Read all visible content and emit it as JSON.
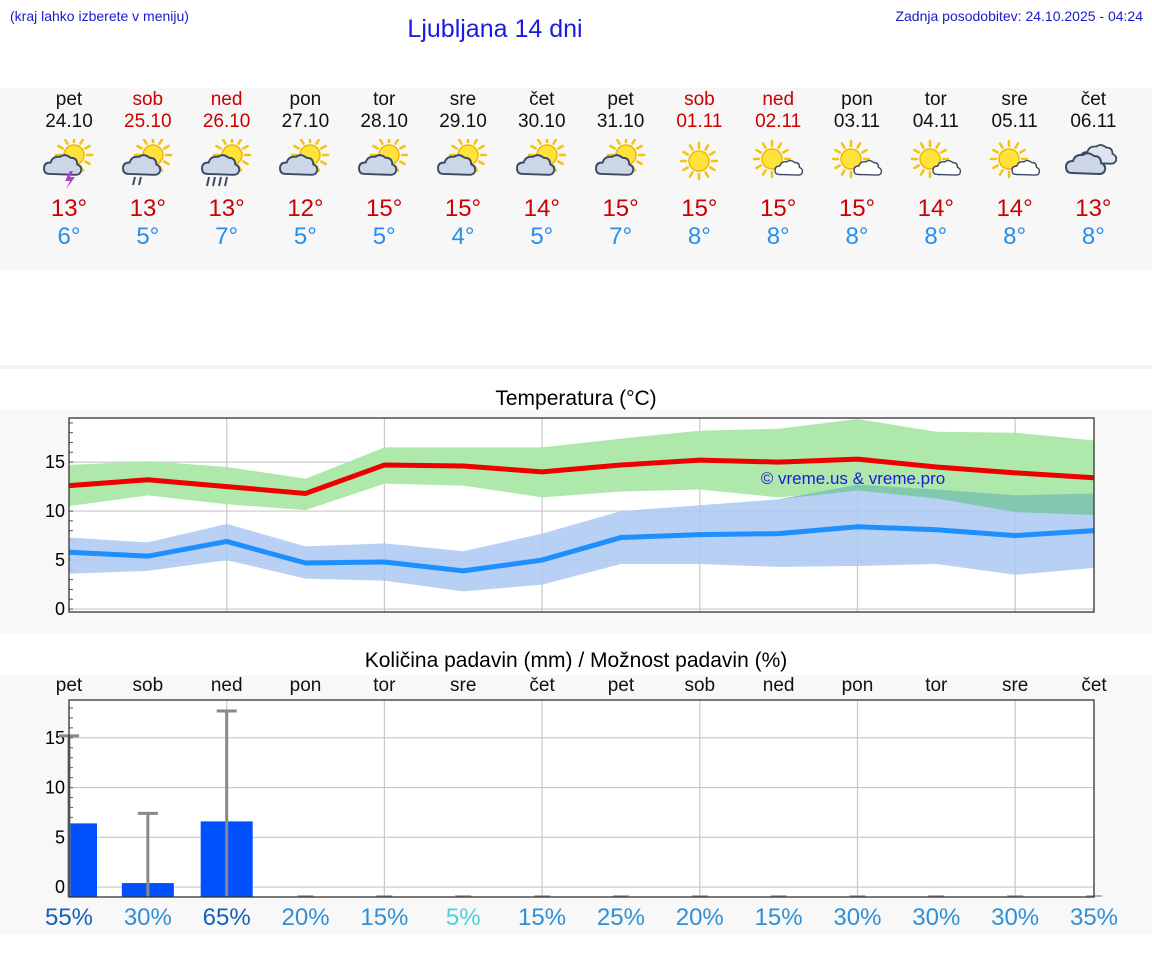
{
  "header": {
    "hint": "(kraj lahko izberete v meniju)",
    "title": "Ljubljana 14 dni",
    "updated": "Zadnja posodobitev: 24.10.2025 - 04:24"
  },
  "days": [
    {
      "name": "pet",
      "date": "24.10",
      "weekend": false,
      "icon": "sun-cloud-thunder-icon",
      "tmax": "13°",
      "tmin": "6°"
    },
    {
      "name": "sob",
      "date": "25.10",
      "weekend": true,
      "icon": "sun-cloud-light-rain-icon",
      "tmax": "13°",
      "tmin": "5°"
    },
    {
      "name": "ned",
      "date": "26.10",
      "weekend": true,
      "icon": "sun-cloud-rain-icon",
      "tmax": "13°",
      "tmin": "7°"
    },
    {
      "name": "pon",
      "date": "27.10",
      "weekend": false,
      "icon": "sun-cloud-icon",
      "tmax": "12°",
      "tmin": "5°"
    },
    {
      "name": "tor",
      "date": "28.10",
      "weekend": false,
      "icon": "sun-cloud-icon",
      "tmax": "15°",
      "tmin": "5°"
    },
    {
      "name": "sre",
      "date": "29.10",
      "weekend": false,
      "icon": "sun-cloud-icon",
      "tmax": "15°",
      "tmin": "4°"
    },
    {
      "name": "čet",
      "date": "30.10",
      "weekend": false,
      "icon": "sun-cloud-icon",
      "tmax": "14°",
      "tmin": "5°"
    },
    {
      "name": "pet",
      "date": "31.10",
      "weekend": false,
      "icon": "sun-cloud-icon",
      "tmax": "15°",
      "tmin": "7°"
    },
    {
      "name": "sob",
      "date": "01.11",
      "weekend": true,
      "icon": "sun-icon",
      "tmax": "15°",
      "tmin": "8°"
    },
    {
      "name": "ned",
      "date": "02.11",
      "weekend": true,
      "icon": "sun-small-cloud-icon",
      "tmax": "15°",
      "tmin": "8°"
    },
    {
      "name": "pon",
      "date": "03.11",
      "weekend": false,
      "icon": "sun-small-cloud-icon",
      "tmax": "15°",
      "tmin": "8°"
    },
    {
      "name": "tor",
      "date": "04.11",
      "weekend": false,
      "icon": "sun-small-cloud-icon",
      "tmax": "14°",
      "tmin": "8°"
    },
    {
      "name": "sre",
      "date": "05.11",
      "weekend": false,
      "icon": "sun-small-cloud-icon",
      "tmax": "14°",
      "tmin": "8°"
    },
    {
      "name": "čet",
      "date": "06.11",
      "weekend": false,
      "icon": "cloudy-icon",
      "tmax": "13°",
      "tmin": "8°"
    }
  ],
  "colors": {
    "max_line": "#ee0000",
    "max_band": "#aee8aa",
    "min_line": "#1e8fff",
    "min_band": "#aac8f2",
    "overlap_band": "#7cc8a8",
    "bar": "#0050ff",
    "whisker": "#888888",
    "weekend_text": "#cc0000",
    "pct_colors": [
      "#1560b8",
      "#2e90d8",
      "#42b8e0",
      "#50d0d8"
    ]
  },
  "chart_data": [
    {
      "type": "line",
      "title": "Temperatura (°C)",
      "categories": [
        "pet",
        "sob",
        "ned",
        "pon",
        "tor",
        "sre",
        "čet",
        "pet",
        "sob",
        "ned",
        "pon",
        "tor",
        "sre",
        "čet"
      ],
      "ylim": [
        -0.3,
        19.5
      ],
      "yticks": [
        0,
        5,
        10,
        15
      ],
      "grid": true,
      "watermark": "© vreme.us & vreme.pro",
      "series": [
        {
          "role": "max",
          "values": [
            12.6,
            13.2,
            12.5,
            11.8,
            14.7,
            14.6,
            14.0,
            14.7,
            15.2,
            15.0,
            15.3,
            14.5,
            13.9,
            13.4
          ],
          "band_low": [
            10.5,
            11.6,
            10.7,
            10.1,
            12.8,
            12.6,
            11.4,
            12.0,
            12.2,
            11.4,
            12.1,
            11.3,
            9.9,
            9.6
          ],
          "band_high": [
            14.7,
            15.1,
            14.5,
            13.3,
            16.5,
            16.5,
            16.5,
            17.4,
            18.2,
            18.4,
            19.4,
            18.1,
            18.0,
            17.2
          ]
        },
        {
          "role": "min",
          "values": [
            5.8,
            5.4,
            6.9,
            4.7,
            4.8,
            3.9,
            5.0,
            7.3,
            7.6,
            7.7,
            8.4,
            8.1,
            7.5,
            8.0
          ],
          "band_low": [
            3.6,
            3.9,
            5.0,
            3.1,
            2.9,
            1.8,
            2.5,
            4.6,
            4.6,
            4.3,
            4.4,
            4.6,
            3.5,
            4.2
          ],
          "band_high": [
            7.3,
            6.8,
            8.7,
            6.4,
            6.7,
            5.9,
            7.7,
            10.0,
            10.6,
            11.2,
            12.7,
            12.2,
            11.6,
            11.8
          ]
        }
      ]
    },
    {
      "type": "bar",
      "title": "Količina padavin (mm) / Možnost padavin (%)",
      "categories": [
        "pet",
        "sob",
        "ned",
        "pon",
        "tor",
        "sre",
        "čet",
        "pet",
        "sob",
        "ned",
        "pon",
        "tor",
        "sre",
        "čet"
      ],
      "ylim": [
        -1,
        18.8
      ],
      "yticks": [
        0,
        5,
        10,
        15
      ],
      "grid": true,
      "values": [
        6.4,
        0.4,
        6.6,
        0,
        0,
        0,
        0,
        0,
        0,
        0,
        0,
        0,
        0,
        0
      ],
      "whisker_max": [
        15.2,
        7.4,
        17.7,
        0,
        0,
        0,
        0,
        0,
        0,
        0,
        0,
        0,
        0,
        0
      ],
      "probability_labels": [
        "55%",
        "30%",
        "65%",
        "20%",
        "15%",
        "5%",
        "15%",
        "25%",
        "20%",
        "15%",
        "30%",
        "30%",
        "30%",
        "35%"
      ],
      "probability_values": [
        55,
        30,
        65,
        20,
        15,
        5,
        15,
        25,
        20,
        15,
        30,
        30,
        30,
        35
      ]
    }
  ]
}
